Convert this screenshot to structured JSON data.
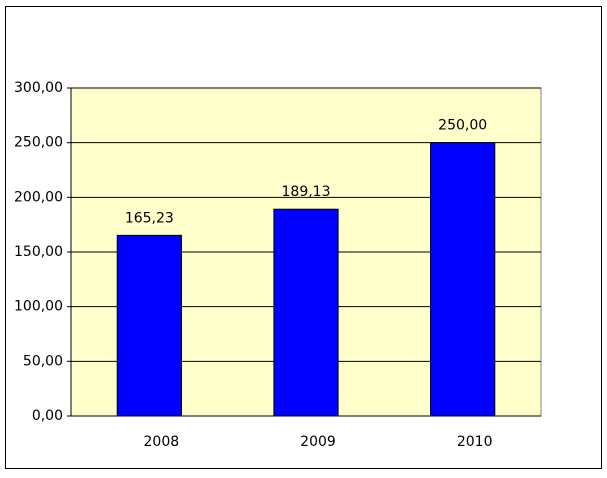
{
  "chart_data": {
    "type": "bar",
    "categories": [
      "2008",
      "2009",
      "2010"
    ],
    "values": [
      165.23,
      189.13,
      250
    ],
    "value_labels": [
      "165,23",
      "189,13",
      "250,00"
    ],
    "color": "#0000ff",
    "ylim": [
      0,
      300
    ],
    "yticks": [
      {
        "value": 0,
        "label": "0,00"
      },
      {
        "value": 50,
        "label": "50,00"
      },
      {
        "value": 100,
        "label": "100,00"
      },
      {
        "value": 150,
        "label": "150,00"
      },
      {
        "value": 200,
        "label": "200,00"
      },
      {
        "value": 250,
        "label": "250,00"
      },
      {
        "value": 300,
        "label": "300,00"
      }
    ],
    "grid": true,
    "plot_background": "#ffffcc"
  }
}
